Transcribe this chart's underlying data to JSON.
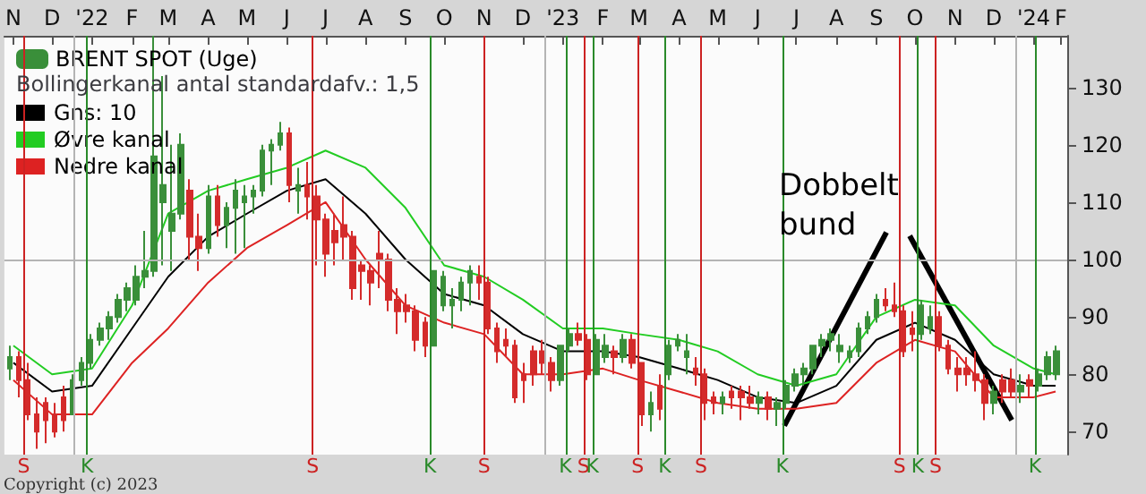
{
  "chart_data": {
    "type": "candlestick",
    "subtitle": "Bollingerkanal antal standardafv.: 1,5",
    "legend": "top left",
    "marker": "none",
    "xlim": [
      "2021-11-08",
      "2024-02-10"
    ],
    "xticks": [
      {
        "value": "2021-11-15",
        "label": "N"
      },
      {
        "value": "2021-12-15",
        "label": "D"
      },
      {
        "value": "2022-01-15",
        "label": "'22"
      },
      {
        "value": "2022-02-15",
        "label": "F"
      },
      {
        "value": "2022-03-15",
        "label": "M"
      },
      {
        "value": "2022-04-15",
        "label": "A"
      },
      {
        "value": "2022-05-15",
        "label": "M"
      },
      {
        "value": "2022-06-15",
        "label": "J"
      },
      {
        "value": "2022-07-15",
        "label": "J"
      },
      {
        "value": "2022-08-15",
        "label": "A"
      },
      {
        "value": "2022-09-15",
        "label": "S"
      },
      {
        "value": "2022-10-15",
        "label": "O"
      },
      {
        "value": "2022-11-15",
        "label": "N"
      },
      {
        "value": "2022-12-15",
        "label": "D"
      },
      {
        "value": "2023-01-15",
        "label": "'23"
      },
      {
        "value": "2023-02-15",
        "label": "F"
      },
      {
        "value": "2023-03-15",
        "label": "M"
      },
      {
        "value": "2023-04-15",
        "label": "A"
      },
      {
        "value": "2023-05-15",
        "label": "M"
      },
      {
        "value": "2023-06-15",
        "label": "J"
      },
      {
        "value": "2023-07-15",
        "label": "J"
      },
      {
        "value": "2023-08-15",
        "label": "A"
      },
      {
        "value": "2023-09-15",
        "label": "S"
      },
      {
        "value": "2023-10-15",
        "label": "O"
      },
      {
        "value": "2023-11-15",
        "label": "N"
      },
      {
        "value": "2023-12-15",
        "label": "D"
      },
      {
        "value": "2024-01-15",
        "label": "'24"
      },
      {
        "value": "2024-02-05",
        "label": "F"
      }
    ],
    "ylim": [
      66,
      139
    ],
    "yticks": [
      70,
      80,
      90,
      100,
      110,
      120,
      130
    ],
    "series": [
      {
        "name": "BRENT SPOT (Uge)",
        "colors": [
          "#3a8f3a",
          "#d42b2b",
          "#d42b2b",
          "#d42b2b",
          "#d42b2b",
          "#d42b2b",
          "#d42b2b",
          "#3a8f3a",
          "#3a8f3a",
          "#3a8f3a",
          "#3a8f3a",
          "#3a8f3a",
          "#3a8f3a",
          "#3a8f3a",
          "#3a8f3a",
          "#3a8f3a",
          "#3a8f3a",
          "#3a8f3a",
          "#3a8f3a",
          "#3a8f3a",
          "#d42b2b",
          "#d42b2b",
          "#3a8f3a",
          "#d42b2b",
          "#3a8f3a",
          "#3a8f3a",
          "#3a8f3a",
          "#3a8f3a",
          "#3a8f3a",
          "#3a8f3a",
          "#3a8f3a",
          "#d42b2b",
          "#3a8f3a",
          "#d42b2b",
          "#d42b2b",
          "#d42b2b",
          "#d42b2b",
          "#d42b2b",
          "#d42b2b",
          "#d42b2b",
          "#d42b2b",
          "#d42b2b",
          "#d42b2b",
          "#d42b2b",
          "#d42b2b",
          "#d42b2b",
          "#d42b2b",
          "#3a8f3a",
          "#3a8f3a",
          "#3a8f3a",
          "#3a8f3a",
          "#3a8f3a",
          "#d42b2b",
          "#d42b2b",
          "#d42b2b",
          "#d42b2b",
          "#d42b2b",
          "#d42b2b",
          "#d42b2b",
          "#d42b2b",
          "#d42b2b",
          "#3a8f3a",
          "#3a8f3a",
          "#d42b2b",
          "#d42b2b",
          "#3a8f3a",
          "#3a8f3a",
          "#d42b2b",
          "#3a8f3a",
          "#d42b2b",
          "#d42b2b",
          "#3a8f3a",
          "#d42b2b",
          "#3a8f3a",
          "#3a8f3a",
          "#3a8f3a",
          "#d42b2b",
          "#d42b2b",
          "#d42b2b",
          "#3a8f3a",
          "#d42b2b",
          "#d42b2b",
          "#d42b2b",
          "#3a8f3a",
          "#d42b2b",
          "#3a8f3a",
          "#3a8f3a",
          "#3a8f3a",
          "#3a8f3a",
          "#3a8f3a",
          "#3a8f3a",
          "#3a8f3a",
          "#3a8f3a",
          "#3a8f3a",
          "#3a8f3a",
          "#3a8f3a",
          "#3a8f3a",
          "#d42b2b",
          "#d42b2b",
          "#d42b2b",
          "#d42b2b",
          "#3a8f3a",
          "#3a8f3a",
          "#d42b2b",
          "#d42b2b",
          "#d42b2b",
          "#d42b2b",
          "#d42b2b",
          "#d42b2b",
          "#3a8f3a",
          "#d42b2b",
          "#d42b2b",
          "#3a8f3a",
          "#d42b2b",
          "#3a8f3a",
          "#3a8f3a",
          "#3a8f3a"
        ],
        "x": [
          "2021-11-12",
          "2021-11-19",
          "2021-11-26",
          "2021-12-03",
          "2021-12-10",
          "2021-12-17",
          "2021-12-24",
          "2021-12-31",
          "2022-01-07",
          "2022-01-14",
          "2022-01-21",
          "2022-01-28",
          "2022-02-04",
          "2022-02-11",
          "2022-02-18",
          "2022-02-25",
          "2022-03-04",
          "2022-03-11",
          "2022-03-18",
          "2022-03-25",
          "2022-04-01",
          "2022-04-08",
          "2022-04-15",
          "2022-04-22",
          "2022-04-29",
          "2022-05-06",
          "2022-05-13",
          "2022-05-20",
          "2022-05-27",
          "2022-06-03",
          "2022-06-10",
          "2022-06-17",
          "2022-06-24",
          "2022-07-01",
          "2022-07-08",
          "2022-07-15",
          "2022-07-22",
          "2022-07-29",
          "2022-08-05",
          "2022-08-12",
          "2022-08-19",
          "2022-08-26",
          "2022-09-02",
          "2022-09-09",
          "2022-09-16",
          "2022-09-23",
          "2022-09-30",
          "2022-10-07",
          "2022-10-14",
          "2022-10-21",
          "2022-10-28",
          "2022-11-04",
          "2022-11-11",
          "2022-11-18",
          "2022-11-25",
          "2022-12-02",
          "2022-12-09",
          "2022-12-16",
          "2022-12-23",
          "2022-12-30",
          "2023-01-06",
          "2023-01-13",
          "2023-01-20",
          "2023-01-27",
          "2023-02-03",
          "2023-02-10",
          "2023-02-17",
          "2023-02-24",
          "2023-03-03",
          "2023-03-10",
          "2023-03-17",
          "2023-03-24",
          "2023-03-31",
          "2023-04-07",
          "2023-04-14",
          "2023-04-21",
          "2023-04-28",
          "2023-05-05",
          "2023-05-12",
          "2023-05-19",
          "2023-05-26",
          "2023-06-02",
          "2023-06-09",
          "2023-06-16",
          "2023-06-23",
          "2023-06-30",
          "2023-07-07",
          "2023-07-14",
          "2023-07-21",
          "2023-07-28",
          "2023-08-04",
          "2023-08-11",
          "2023-08-18",
          "2023-08-25",
          "2023-09-01",
          "2023-09-08",
          "2023-09-15",
          "2023-09-22",
          "2023-09-29",
          "2023-10-06",
          "2023-10-13",
          "2023-10-20",
          "2023-10-27",
          "2023-11-03",
          "2023-11-10",
          "2023-11-17",
          "2023-11-24",
          "2023-12-01",
          "2023-12-08",
          "2023-12-15",
          "2023-12-22",
          "2023-12-29",
          "2024-01-05",
          "2024-01-12",
          "2024-01-19",
          "2024-01-26",
          "2024-02-02"
        ],
        "ohlc": [
          [
            81,
            85,
            79,
            83
          ],
          [
            83,
            84,
            76,
            79
          ],
          [
            79,
            82,
            72,
            73
          ],
          [
            73,
            76,
            67,
            70
          ],
          [
            75,
            76,
            68,
            72
          ],
          [
            73,
            75,
            69,
            70
          ],
          [
            76,
            78,
            70,
            72
          ],
          [
            73,
            80,
            73,
            79
          ],
          [
            79,
            83,
            78,
            82
          ],
          [
            82,
            87,
            81,
            86
          ],
          [
            86,
            89,
            85,
            88
          ],
          [
            88,
            91,
            86,
            90
          ],
          [
            90,
            94,
            89,
            93
          ],
          [
            93,
            96,
            91,
            95
          ],
          [
            93,
            99,
            92,
            97
          ],
          [
            97,
            105,
            95,
            98
          ],
          [
            98,
            139,
            97,
            118
          ],
          [
            110,
            132,
            99,
            113
          ],
          [
            105,
            120,
            98,
            108
          ],
          [
            108,
            122,
            107,
            120
          ],
          [
            112,
            114,
            100,
            104
          ],
          [
            104,
            108,
            98,
            102
          ],
          [
            102,
            113,
            101,
            111
          ],
          [
            111,
            113,
            104,
            106
          ],
          [
            106,
            110,
            102,
            109
          ],
          [
            109,
            114,
            101,
            112
          ],
          [
            110,
            113,
            102,
            111
          ],
          [
            111,
            113,
            108,
            112
          ],
          [
            112,
            120,
            111,
            119
          ],
          [
            119,
            121,
            113,
            120
          ],
          [
            120,
            124,
            119,
            122
          ],
          [
            122,
            123,
            110,
            113
          ],
          [
            112,
            116,
            108,
            113
          ],
          [
            113,
            117,
            107,
            111
          ],
          [
            111,
            113,
            99,
            107
          ],
          [
            107,
            108,
            97,
            101
          ],
          [
            105,
            108,
            99,
            103
          ],
          [
            106,
            111,
            100,
            104
          ],
          [
            104,
            105,
            93,
            95
          ],
          [
            99,
            100,
            93,
            98
          ],
          [
            98,
            99,
            92,
            96
          ],
          [
            101,
            105,
            95,
            100
          ],
          [
            100,
            101,
            91,
            93
          ],
          [
            93,
            95,
            87,
            91
          ],
          [
            92,
            94,
            89,
            91
          ],
          [
            91,
            92,
            84,
            86
          ],
          [
            89,
            90,
            83,
            85
          ],
          [
            85,
            98,
            85,
            98
          ],
          [
            92,
            98,
            91,
            97
          ],
          [
            92,
            95,
            88,
            93
          ],
          [
            93,
            97,
            91,
            96
          ],
          [
            96,
            99,
            92,
            98
          ],
          [
            97,
            99,
            93,
            96
          ],
          [
            96,
            97,
            87,
            88
          ],
          [
            88,
            89,
            82,
            84
          ],
          [
            86,
            88,
            83,
            85
          ],
          [
            85,
            86,
            75,
            76
          ],
          [
            80,
            82,
            75,
            79
          ],
          [
            84,
            85,
            78,
            80
          ],
          [
            84,
            86,
            80,
            82
          ],
          [
            82,
            83,
            77,
            79
          ],
          [
            79,
            85,
            78,
            85
          ],
          [
            85,
            88,
            84,
            87
          ],
          [
            87,
            89,
            85,
            86
          ],
          [
            86,
            87,
            79,
            80
          ],
          [
            80,
            87,
            80,
            86
          ],
          [
            83,
            87,
            82,
            85
          ],
          [
            84,
            85,
            80,
            83
          ],
          [
            83,
            87,
            82,
            86
          ],
          [
            86,
            87,
            81,
            82
          ],
          [
            82,
            82,
            71,
            73
          ],
          [
            73,
            77,
            70,
            75
          ],
          [
            78,
            80,
            72,
            74
          ],
          [
            80,
            86,
            79,
            85
          ],
          [
            85,
            87,
            84,
            86
          ],
          [
            83,
            87,
            80,
            84
          ],
          [
            81,
            83,
            78,
            80
          ],
          [
            80,
            81,
            72,
            75
          ],
          [
            76,
            77,
            73,
            75
          ],
          [
            75,
            77,
            73,
            76
          ],
          [
            77,
            78,
            74,
            76
          ],
          [
            77,
            78,
            72,
            76
          ],
          [
            76,
            78,
            74,
            75
          ],
          [
            75,
            77,
            73,
            76
          ],
          [
            76,
            77,
            72,
            74
          ],
          [
            74,
            76,
            71,
            75
          ],
          [
            75,
            79,
            74,
            78
          ],
          [
            78,
            81,
            77,
            80
          ],
          [
            80,
            82,
            78,
            81
          ],
          [
            81,
            85,
            80,
            85
          ],
          [
            85,
            87,
            83,
            86
          ],
          [
            86,
            88,
            84,
            87
          ],
          [
            84,
            87,
            82,
            85
          ],
          [
            83,
            85,
            82,
            84
          ],
          [
            84,
            89,
            83,
            88
          ],
          [
            88,
            91,
            87,
            90
          ],
          [
            90,
            94,
            89,
            93
          ],
          [
            93,
            95,
            91,
            92
          ],
          [
            92,
            96,
            90,
            91
          ],
          [
            91,
            92,
            83,
            84
          ],
          [
            88,
            91,
            84,
            87
          ],
          [
            87,
            93,
            86,
            92
          ],
          [
            88,
            92,
            87,
            90
          ],
          [
            90,
            91,
            84,
            85
          ],
          [
            85,
            86,
            80,
            81
          ],
          [
            81,
            83,
            77,
            80
          ],
          [
            81,
            83,
            78,
            80
          ],
          [
            80,
            84,
            77,
            79
          ],
          [
            79,
            80,
            72,
            75
          ],
          [
            75,
            78,
            73,
            77
          ],
          [
            79,
            80,
            75,
            77
          ],
          [
            79,
            81,
            76,
            77
          ],
          [
            77,
            80,
            75,
            78
          ],
          [
            79,
            80,
            76,
            78
          ],
          [
            78,
            81,
            77,
            80
          ],
          [
            80,
            84,
            79,
            83
          ],
          [
            80,
            85,
            79,
            84
          ]
        ]
      },
      {
        "type": "line",
        "name": "Gns: 10",
        "color": "#000000",
        "x": [
          "2021-11-15",
          "2021-12-15",
          "2022-01-15",
          "2022-02-15",
          "2022-03-15",
          "2022-04-15",
          "2022-05-15",
          "2022-06-15",
          "2022-07-15",
          "2022-08-15",
          "2022-09-15",
          "2022-10-15",
          "2022-11-15",
          "2022-12-15",
          "2023-01-15",
          "2023-02-15",
          "2023-03-15",
          "2023-04-15",
          "2023-05-15",
          "2023-06-15",
          "2023-07-15",
          "2023-08-15",
          "2023-09-15",
          "2023-10-15",
          "2023-11-15",
          "2023-12-15",
          "2024-01-15",
          "2024-02-01"
        ],
        "values": [
          82,
          77,
          78,
          88,
          97,
          104,
          108,
          112,
          114,
          108,
          100,
          94,
          92,
          87,
          84,
          84,
          83,
          81,
          79,
          76,
          75,
          78,
          86,
          89,
          86,
          80,
          78,
          78
        ]
      },
      {
        "type": "line",
        "name": "Øvre kanal",
        "color": "#22cc22",
        "x": [
          "2021-11-15",
          "2021-12-15",
          "2022-01-15",
          "2022-02-15",
          "2022-03-15",
          "2022-04-15",
          "2022-05-15",
          "2022-06-15",
          "2022-07-15",
          "2022-08-15",
          "2022-09-15",
          "2022-10-15",
          "2022-11-15",
          "2022-12-15",
          "2023-01-15",
          "2023-02-15",
          "2023-03-15",
          "2023-04-15",
          "2023-05-15",
          "2023-06-15",
          "2023-07-15",
          "2023-08-15",
          "2023-09-15",
          "2023-10-15",
          "2023-11-15",
          "2023-12-15",
          "2024-01-15",
          "2024-02-01"
        ],
        "values": [
          85,
          80,
          81,
          92,
          108,
          112,
          114,
          116,
          119,
          116,
          109,
          99,
          97,
          93,
          88,
          88,
          87,
          86,
          84,
          80,
          78,
          80,
          90,
          93,
          92,
          85,
          81,
          80
        ]
      },
      {
        "type": "line",
        "name": "Nedre kanal",
        "color": "#dd2222",
        "x": [
          "2021-11-15",
          "2021-12-15",
          "2022-01-15",
          "2022-02-15",
          "2022-03-15",
          "2022-04-15",
          "2022-05-15",
          "2022-06-15",
          "2022-07-15",
          "2022-08-15",
          "2022-09-15",
          "2022-10-15",
          "2022-11-15",
          "2022-12-15",
          "2023-01-15",
          "2023-02-15",
          "2023-03-15",
          "2023-04-15",
          "2023-05-15",
          "2023-06-15",
          "2023-07-15",
          "2023-08-15",
          "2023-09-15",
          "2023-10-15",
          "2023-11-15",
          "2023-12-15",
          "2024-01-15",
          "2024-02-01"
        ],
        "values": [
          79,
          73,
          73,
          82,
          88,
          96,
          102,
          106,
          110,
          100,
          92,
          89,
          87,
          80,
          80,
          81,
          79,
          77,
          75,
          74,
          74,
          75,
          82,
          86,
          84,
          76,
          76,
          77
        ]
      }
    ],
    "ref_lines": [
      {
        "axis": "y",
        "value": 100,
        "color": "#b4b4b4"
      },
      {
        "axis": "x",
        "value": "2022-01-01",
        "color": "#b4b4b4"
      },
      {
        "axis": "x",
        "value": "2023-01-01",
        "color": "#b4b4b4"
      },
      {
        "axis": "x",
        "value": "2024-01-01",
        "color": "#b4b4b4"
      },
      {
        "axis": "x",
        "value": "2021-11-23",
        "label": "S",
        "color": "#cc2222"
      },
      {
        "axis": "x",
        "value": "2022-01-11",
        "label": "K",
        "color": "#2a8a2a"
      },
      {
        "axis": "x",
        "value": "2022-07-05",
        "label": "S",
        "color": "#cc2222"
      },
      {
        "axis": "x",
        "value": "2022-10-04",
        "label": "K",
        "color": "#2a8a2a"
      },
      {
        "axis": "x",
        "value": "2022-11-15",
        "label": "S",
        "color": "#cc2222"
      },
      {
        "axis": "x",
        "value": "2023-01-17",
        "label": "K",
        "color": "#2a8a2a"
      },
      {
        "axis": "x",
        "value": "2023-01-31",
        "label": "S",
        "color": "#cc2222"
      },
      {
        "axis": "x",
        "value": "2023-02-07",
        "label": "K",
        "color": "#2a8a2a"
      },
      {
        "axis": "x",
        "value": "2023-03-14",
        "label": "S",
        "color": "#cc2222"
      },
      {
        "axis": "x",
        "value": "2023-04-04",
        "label": "K",
        "color": "#2a8a2a"
      },
      {
        "axis": "x",
        "value": "2023-05-02",
        "label": "S",
        "color": "#cc2222"
      },
      {
        "axis": "x",
        "value": "2023-07-04",
        "label": "K",
        "color": "#2a8a2a"
      },
      {
        "axis": "x",
        "value": "2023-10-03",
        "label": "S",
        "color": "#cc2222"
      },
      {
        "axis": "x",
        "value": "2023-10-17",
        "label": "K",
        "color": "#2a8a2a"
      },
      {
        "axis": "x",
        "value": "2023-10-31",
        "label": "S",
        "color": "#cc2222"
      },
      {
        "axis": "x",
        "value": "2024-01-16",
        "label": "K",
        "color": "#2a8a2a"
      }
    ],
    "annotations": [
      {
        "text": "Dobbelt bund",
        "x": "2023-12-29",
        "y": 72
      },
      "Copyright (c) 2023"
    ]
  }
}
